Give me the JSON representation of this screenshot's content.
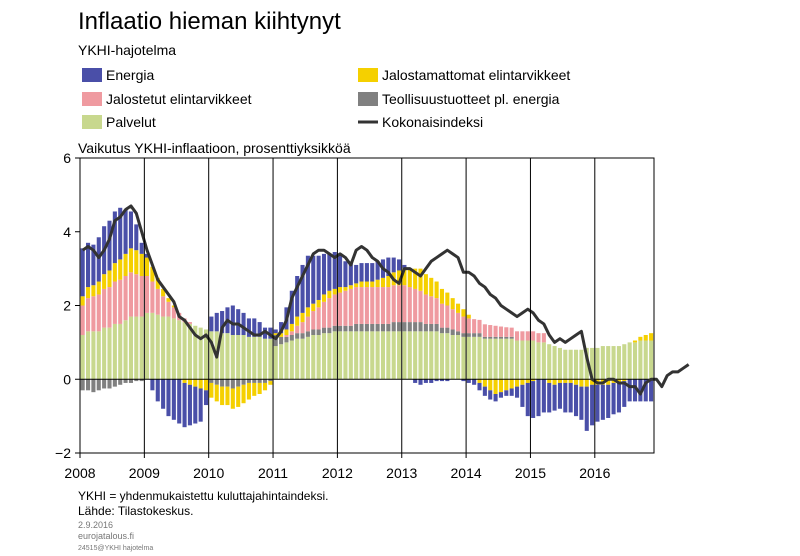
{
  "header": {
    "title": "Inflaatio hieman kiihtynyt",
    "subtitle": "YKHI-hajotelma",
    "axis_caption": "Vaikutus YKHI-inflaatioon,  prosenttiyksikköä"
  },
  "footer": {
    "note": "YKHI = yhdenmukaistettu  kuluttajahintaindeksi.",
    "source": "Lähde: Tilastokeskus.",
    "date": "2.9.2016",
    "site": "eurojatalous.fi",
    "code": "24515@YKHI hajotelma"
  },
  "colors": {
    "energia": "#4a4fa8",
    "jalostetut": "#ef9aa0",
    "palvelut": "#c8d88e",
    "jalostamattomat": "#f5d000",
    "teollisuus": "#808080",
    "kokonais": "#333333"
  },
  "chart_data": {
    "type": "bar",
    "stacked": true,
    "title": "Inflaatio hieman kiihtynyt",
    "subtitle": "YKHI-hajotelma",
    "ylabel": "Vaikutus YKHI-inflaatioon,  prosenttiyksikköä",
    "ylim": [
      -2,
      6
    ],
    "yticks": [
      -2,
      0,
      2,
      4,
      6
    ],
    "xlim": [
      2008.0,
      2016.92
    ],
    "xticks": [
      "2008",
      "2009",
      "2010",
      "2011",
      "2012",
      "2013",
      "2014",
      "2015",
      "2016"
    ],
    "start": "2008-01",
    "frequency": "monthly",
    "legend": [
      {
        "key": "energia",
        "label": "Energia",
        "kind": "bar"
      },
      {
        "key": "jalostamattomat",
        "label": "Jalostamattomat elintarvikkeet",
        "kind": "bar"
      },
      {
        "key": "jalostetut",
        "label": "Jalostetut elintarvikkeet",
        "kind": "bar"
      },
      {
        "key": "teollisuus",
        "label": "Teollisuustuotteet pl. energia",
        "kind": "bar"
      },
      {
        "key": "palvelut",
        "label": "Palvelut",
        "kind": "bar"
      },
      {
        "key": "kokonais",
        "label": "Kokonaisindeksi",
        "kind": "line"
      }
    ],
    "series": {
      "palvelut": [
        1.2,
        1.3,
        1.3,
        1.3,
        1.4,
        1.4,
        1.5,
        1.5,
        1.6,
        1.7,
        1.7,
        1.7,
        1.8,
        1.8,
        1.75,
        1.7,
        1.7,
        1.65,
        1.6,
        1.55,
        1.5,
        1.45,
        1.4,
        1.35,
        1.3,
        1.3,
        1.25,
        1.25,
        1.2,
        1.2,
        1.2,
        1.15,
        1.15,
        1.15,
        1.1,
        1.1,
        0.9,
        0.95,
        1.0,
        1.05,
        1.1,
        1.1,
        1.15,
        1.2,
        1.2,
        1.25,
        1.25,
        1.3,
        1.3,
        1.3,
        1.3,
        1.3,
        1.3,
        1.3,
        1.3,
        1.3,
        1.3,
        1.3,
        1.3,
        1.3,
        1.3,
        1.3,
        1.3,
        1.3,
        1.3,
        1.3,
        1.3,
        1.25,
        1.25,
        1.2,
        1.2,
        1.15,
        1.15,
        1.15,
        1.15,
        1.1,
        1.1,
        1.1,
        1.1,
        1.1,
        1.1,
        1.05,
        1.05,
        1.05,
        1.05,
        1.0,
        1.0,
        0.95,
        0.9,
        0.85,
        0.8,
        0.8,
        0.8,
        0.8,
        0.85,
        0.85,
        0.85,
        0.9,
        0.9,
        0.9,
        0.9,
        0.95,
        1.0,
        1.0,
        1.05,
        1.05,
        1.05
      ],
      "teollisuus": [
        -0.3,
        -0.3,
        -0.35,
        -0.3,
        -0.25,
        -0.25,
        -0.2,
        -0.15,
        -0.1,
        -0.1,
        -0.05,
        -0.05,
        0.0,
        0.0,
        0.0,
        0.0,
        0.0,
        0.0,
        0.0,
        0.0,
        0.0,
        0.0,
        0.0,
        0.0,
        -0.1,
        -0.15,
        -0.2,
        -0.2,
        -0.25,
        -0.2,
        -0.15,
        -0.1,
        -0.1,
        -0.1,
        -0.1,
        -0.05,
        0.3,
        0.2,
        0.15,
        0.15,
        0.15,
        0.15,
        0.15,
        0.15,
        0.15,
        0.15,
        0.15,
        0.15,
        0.15,
        0.15,
        0.15,
        0.2,
        0.2,
        0.2,
        0.2,
        0.2,
        0.2,
        0.2,
        0.25,
        0.25,
        0.25,
        0.25,
        0.25,
        0.25,
        0.2,
        0.2,
        0.2,
        0.15,
        0.15,
        0.15,
        0.1,
        0.1,
        0.1,
        0.1,
        0.1,
        0.05,
        0.05,
        0.05,
        0.05,
        0.05,
        0.05,
        0.0,
        0.0,
        0.0,
        0.0,
        0.0,
        0.0,
        0.0,
        0.0,
        0.0,
        0.0,
        0.0,
        0.0,
        0.0,
        0.0,
        0.0,
        0.0,
        0.0,
        0.0,
        0.0,
        0.0,
        0.0,
        0.0,
        0.0,
        0.0,
        0.0,
        0.0
      ],
      "jalostetut": [
        0.8,
        0.9,
        0.95,
        1.0,
        1.05,
        1.1,
        1.15,
        1.2,
        1.2,
        1.2,
        1.15,
        1.1,
        1.0,
        0.85,
        0.7,
        0.55,
        0.4,
        0.3,
        0.2,
        0.1,
        0.05,
        0.0,
        0.0,
        0.0,
        0.0,
        0.0,
        0.0,
        0.0,
        0.0,
        0.0,
        0.0,
        0.0,
        0.0,
        0.0,
        0.0,
        0.0,
        0.0,
        0.0,
        0.05,
        0.1,
        0.2,
        0.3,
        0.4,
        0.5,
        0.6,
        0.7,
        0.8,
        0.85,
        0.9,
        0.95,
        1.0,
        1.0,
        1.0,
        1.0,
        1.0,
        1.0,
        1.0,
        1.0,
        1.0,
        1.0,
        1.0,
        0.95,
        0.9,
        0.85,
        0.8,
        0.75,
        0.7,
        0.65,
        0.6,
        0.55,
        0.5,
        0.45,
        0.4,
        0.38,
        0.36,
        0.34,
        0.32,
        0.3,
        0.28,
        0.26,
        0.25,
        0.25,
        0.25,
        0.25,
        0.25,
        0.25,
        0.25,
        0.0,
        0.0,
        0.0,
        0.0,
        0.0,
        0.0,
        0.0,
        0.0,
        0.0,
        0.0,
        0.0,
        0.0,
        0.0,
        0.0,
        0.0,
        0.0,
        0.0,
        0.0,
        0.0,
        0.0
      ],
      "jalostamattomat": [
        0.25,
        0.3,
        0.3,
        0.35,
        0.4,
        0.45,
        0.5,
        0.55,
        0.6,
        0.65,
        0.65,
        0.6,
        0.5,
        0.4,
        0.3,
        0.2,
        0.1,
        0.05,
        0.0,
        -0.1,
        -0.15,
        -0.2,
        -0.25,
        -0.3,
        -0.4,
        -0.45,
        -0.5,
        -0.5,
        -0.55,
        -0.55,
        -0.5,
        -0.45,
        -0.35,
        -0.3,
        -0.2,
        -0.1,
        0.05,
        0.1,
        0.15,
        0.2,
        0.25,
        0.25,
        0.25,
        0.2,
        0.2,
        0.2,
        0.2,
        0.15,
        0.15,
        0.1,
        0.1,
        0.1,
        0.15,
        0.15,
        0.15,
        0.2,
        0.25,
        0.3,
        0.35,
        0.4,
        0.45,
        0.5,
        0.55,
        0.6,
        0.55,
        0.5,
        0.45,
        0.4,
        0.35,
        0.3,
        0.25,
        0.2,
        0.1,
        0.0,
        -0.1,
        -0.2,
        -0.3,
        -0.4,
        -0.35,
        -0.3,
        -0.25,
        -0.2,
        -0.15,
        -0.1,
        -0.05,
        0.0,
        0.0,
        -0.1,
        -0.15,
        -0.1,
        -0.1,
        -0.1,
        -0.15,
        -0.2,
        -0.2,
        -0.15,
        -0.15,
        -0.15,
        -0.15,
        -0.1,
        -0.1,
        -0.05,
        0.0,
        0.05,
        0.1,
        0.15,
        0.2
      ],
      "energia": [
        1.3,
        1.2,
        1.1,
        1.2,
        1.3,
        1.35,
        1.4,
        1.4,
        1.2,
        1.0,
        0.7,
        0.3,
        0.1,
        -0.3,
        -0.6,
        -0.8,
        -1.0,
        -1.1,
        -1.2,
        -1.2,
        -1.1,
        -1.0,
        -0.9,
        -0.4,
        0.4,
        0.5,
        0.6,
        0.7,
        0.8,
        0.7,
        0.6,
        0.5,
        0.5,
        0.4,
        0.3,
        0.3,
        0.1,
        0.3,
        0.6,
        0.9,
        1.1,
        1.3,
        1.4,
        1.3,
        1.2,
        1.1,
        1.0,
        1.0,
        0.9,
        0.7,
        0.6,
        0.5,
        0.5,
        0.5,
        0.5,
        0.5,
        0.5,
        0.5,
        0.4,
        0.3,
        0.1,
        0.0,
        -0.1,
        -0.15,
        -0.1,
        -0.1,
        -0.05,
        -0.05,
        -0.05,
        0.0,
        0.0,
        -0.05,
        -0.1,
        -0.15,
        -0.2,
        -0.25,
        -0.25,
        -0.2,
        -0.15,
        -0.15,
        -0.2,
        -0.3,
        -0.6,
        -0.9,
        -1.0,
        -1.0,
        -0.9,
        -0.8,
        -0.7,
        -0.7,
        -0.8,
        -0.8,
        -0.85,
        -0.9,
        -1.2,
        -1.1,
        -1.0,
        -0.95,
        -0.9,
        -0.85,
        -0.8,
        -0.7,
        -0.6,
        -0.6,
        -0.6,
        -0.6,
        -0.6
      ],
      "kokonais": [
        3.5,
        3.6,
        3.5,
        3.3,
        3.5,
        3.8,
        4.3,
        4.4,
        4.6,
        4.7,
        4.5,
        4.0,
        3.5,
        3.1,
        2.7,
        2.5,
        2.3,
        2.1,
        1.7,
        1.6,
        1.4,
        1.2,
        1.1,
        1.2,
        1.0,
        0.6,
        1.4,
        1.6,
        1.5,
        1.5,
        1.4,
        1.3,
        1.2,
        1.2,
        1.3,
        1.2,
        1.1,
        1.3,
        1.6,
        2.2,
        2.5,
        2.8,
        3.1,
        3.4,
        3.5,
        3.5,
        3.4,
        3.3,
        3.4,
        3.3,
        3.1,
        3.5,
        3.6,
        3.5,
        3.3,
        3.2,
        3.0,
        2.9,
        2.7,
        2.6,
        3.0,
        3.0,
        2.9,
        2.8,
        3.0,
        3.2,
        3.3,
        3.4,
        3.5,
        3.4,
        3.3,
        2.9,
        2.9,
        2.8,
        2.6,
        2.5,
        2.3,
        2.2,
        2.0,
        1.9,
        1.8,
        1.7,
        1.8,
        1.9,
        1.8,
        1.6,
        1.5,
        1.2,
        1.0,
        1.1,
        1.0,
        1.1,
        1.2,
        1.3,
        0.6,
        0.0,
        -0.1,
        -0.1,
        0.0,
        0.0,
        -0.1,
        -0.1,
        -0.2,
        -0.2,
        -0.4,
        -0.1,
        0.0,
        0.0,
        -0.2,
        0.1,
        0.2,
        0.2,
        0.3,
        0.4
      ]
    }
  }
}
